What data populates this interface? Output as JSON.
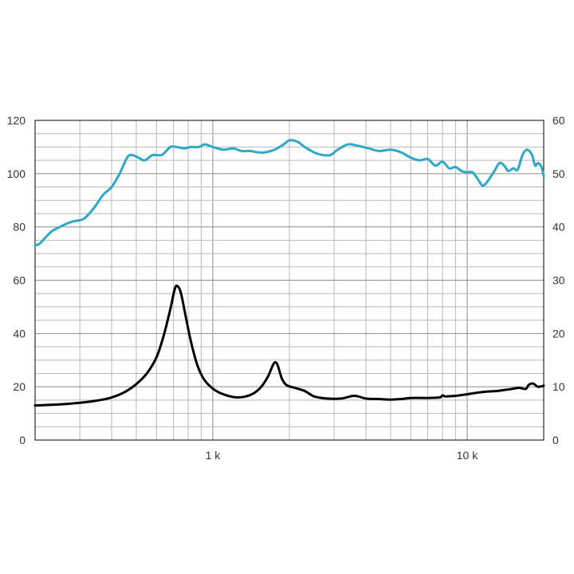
{
  "chart_data": {
    "type": "line",
    "title": "",
    "xlabel": "",
    "ylabel_left": "",
    "ylabel_right": "",
    "x_scale": "log",
    "xlim": [
      200,
      20000
    ],
    "ylim_left": [
      0,
      120
    ],
    "ylim_right": [
      0,
      60
    ],
    "grid": true,
    "legend": "none",
    "x_tick_labels": [
      {
        "value": 1000,
        "label": "1 k"
      },
      {
        "value": 10000,
        "label": "10 k"
      }
    ],
    "y_tick_labels_left": [
      "0",
      "20",
      "40",
      "60",
      "80",
      "100",
      "120"
    ],
    "y_tick_labels_right": [
      "0",
      "10",
      "20",
      "30",
      "40",
      "50",
      "60"
    ],
    "series": [
      {
        "axis": "left",
        "color": "#2ea8c6",
        "points": [
          [
            200,
            73
          ],
          [
            210,
            74
          ],
          [
            230,
            78
          ],
          [
            250,
            80
          ],
          [
            280,
            82
          ],
          [
            310,
            83
          ],
          [
            340,
            87
          ],
          [
            370,
            92
          ],
          [
            400,
            95
          ],
          [
            430,
            100
          ],
          [
            460,
            106
          ],
          [
            480,
            107
          ],
          [
            510,
            106
          ],
          [
            540,
            105
          ],
          [
            580,
            107
          ],
          [
            630,
            107
          ],
          [
            680,
            110
          ],
          [
            720,
            110
          ],
          [
            770,
            109.5
          ],
          [
            820,
            110
          ],
          [
            880,
            110
          ],
          [
            930,
            111
          ],
          [
            1000,
            110
          ],
          [
            1100,
            109
          ],
          [
            1200,
            109.5
          ],
          [
            1300,
            108.5
          ],
          [
            1400,
            108.5
          ],
          [
            1500,
            108
          ],
          [
            1600,
            108
          ],
          [
            1750,
            109
          ],
          [
            1900,
            111
          ],
          [
            2000,
            112.5
          ],
          [
            2150,
            112
          ],
          [
            2300,
            110
          ],
          [
            2500,
            108
          ],
          [
            2700,
            107
          ],
          [
            2900,
            107
          ],
          [
            3100,
            109
          ],
          [
            3400,
            111
          ],
          [
            3700,
            110.5
          ],
          [
            4100,
            109.5
          ],
          [
            4500,
            108.5
          ],
          [
            5000,
            109
          ],
          [
            5500,
            108
          ],
          [
            6000,
            106
          ],
          [
            6500,
            105
          ],
          [
            7000,
            105.5
          ],
          [
            7500,
            103
          ],
          [
            8000,
            104.5
          ],
          [
            8500,
            102
          ],
          [
            9000,
            102.5
          ],
          [
            9500,
            101
          ],
          [
            10000,
            100.5
          ],
          [
            10500,
            100.5
          ],
          [
            11000,
            98
          ],
          [
            11500,
            95.5
          ],
          [
            12000,
            97
          ],
          [
            12800,
            101
          ],
          [
            13400,
            104
          ],
          [
            14000,
            103
          ],
          [
            14500,
            101
          ],
          [
            15200,
            102
          ],
          [
            15800,
            101.5
          ],
          [
            16500,
            107
          ],
          [
            17200,
            109
          ],
          [
            18000,
            107
          ],
          [
            18500,
            103
          ],
          [
            19000,
            104
          ],
          [
            19600,
            102.5
          ],
          [
            20000,
            99
          ]
        ]
      },
      {
        "axis": "right",
        "color": "#000000",
        "points": [
          [
            200,
            6.5
          ],
          [
            250,
            6.7
          ],
          [
            300,
            7.0
          ],
          [
            350,
            7.4
          ],
          [
            400,
            8.0
          ],
          [
            450,
            9.0
          ],
          [
            500,
            10.5
          ],
          [
            550,
            12.5
          ],
          [
            600,
            15.5
          ],
          [
            640,
            19.5
          ],
          [
            680,
            24.5
          ],
          [
            710,
            28.5
          ],
          [
            730,
            28.8
          ],
          [
            750,
            27.5
          ],
          [
            780,
            23.5
          ],
          [
            820,
            18.5
          ],
          [
            870,
            14
          ],
          [
            920,
            11.5
          ],
          [
            980,
            10
          ],
          [
            1050,
            9
          ],
          [
            1150,
            8.3
          ],
          [
            1250,
            8
          ],
          [
            1350,
            8.2
          ],
          [
            1450,
            8.8
          ],
          [
            1550,
            10
          ],
          [
            1650,
            12
          ],
          [
            1720,
            14
          ],
          [
            1760,
            14.6
          ],
          [
            1800,
            14
          ],
          [
            1870,
            11.5
          ],
          [
            1950,
            10.3
          ],
          [
            2100,
            9.8
          ],
          [
            2300,
            9.2
          ],
          [
            2500,
            8.2
          ],
          [
            2800,
            7.8
          ],
          [
            3200,
            7.8
          ],
          [
            3600,
            8.3
          ],
          [
            4000,
            7.8
          ],
          [
            4500,
            7.7
          ],
          [
            5000,
            7.6
          ],
          [
            5500,
            7.7
          ],
          [
            6000,
            7.9
          ],
          [
            7000,
            7.9
          ],
          [
            7800,
            8.0
          ],
          [
            8000,
            8.4
          ],
          [
            8200,
            8.2
          ],
          [
            9000,
            8.3
          ],
          [
            10000,
            8.6
          ],
          [
            11000,
            8.9
          ],
          [
            12000,
            9.1
          ],
          [
            13000,
            9.2
          ],
          [
            14000,
            9.4
          ],
          [
            15000,
            9.6
          ],
          [
            16000,
            9.8
          ],
          [
            17000,
            9.6
          ],
          [
            17500,
            10.4
          ],
          [
            18200,
            10.6
          ],
          [
            19000,
            10.0
          ],
          [
            20000,
            10.2
          ]
        ]
      }
    ]
  }
}
